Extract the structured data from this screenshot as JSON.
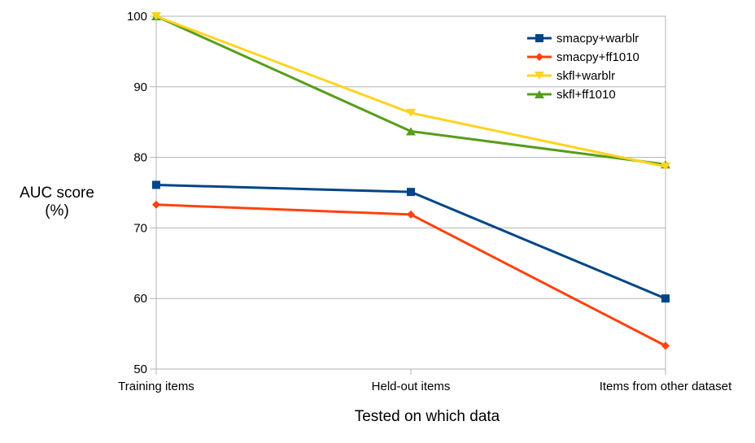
{
  "chart_data": {
    "type": "line",
    "categories": [
      "Training items",
      "Held-out items",
      "Items from other dataset"
    ],
    "xlabel": "Tested on which data",
    "ylabel": "AUC score (%)",
    "ylabel_lines": [
      "AUC score",
      "(%)"
    ],
    "ylim": [
      50,
      100
    ],
    "yticks": [
      50,
      60,
      70,
      80,
      90,
      100
    ],
    "grid": "horizontal",
    "legend_position": "top-right",
    "series": [
      {
        "name": "smacpy+warblr",
        "values": [
          76.1,
          75.1,
          60.0
        ],
        "color": "#004586",
        "marker": "square"
      },
      {
        "name": "smacpy+ff1010",
        "values": [
          73.3,
          71.9,
          53.3
        ],
        "color": "#ff420e",
        "marker": "diamond"
      },
      {
        "name": "skfl+warblr",
        "values": [
          100.0,
          86.3,
          78.7
        ],
        "color": "#ffd320",
        "marker": "triangle-down"
      },
      {
        "name": "skfl+ff1010",
        "values": [
          100.0,
          83.7,
          79.0
        ],
        "color": "#579d1c",
        "marker": "triangle-up"
      }
    ]
  }
}
